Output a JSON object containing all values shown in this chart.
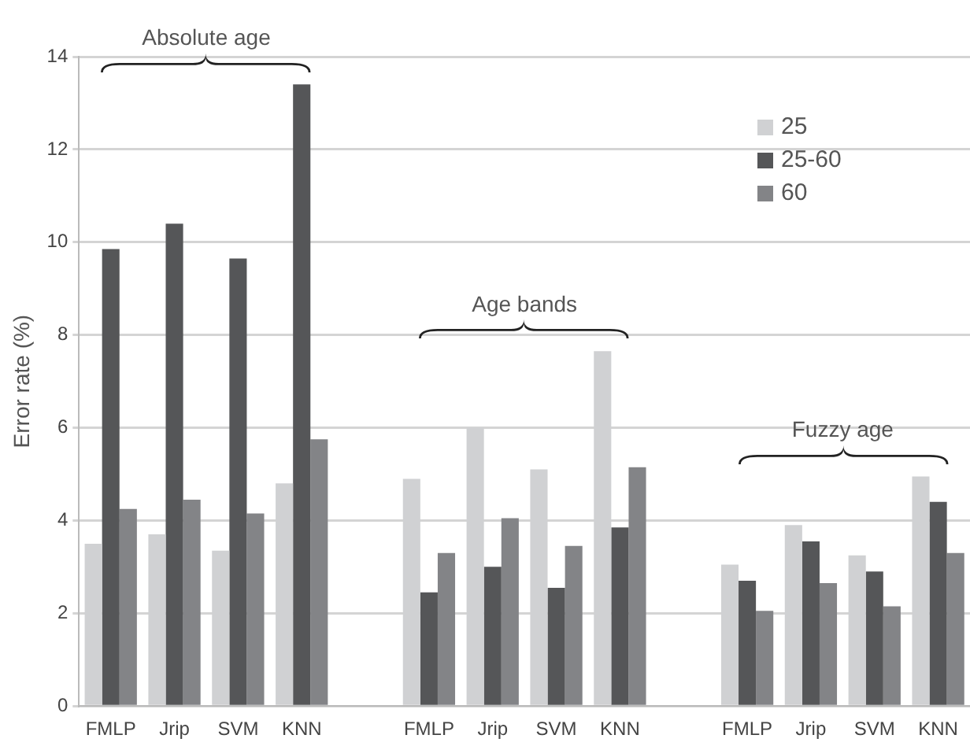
{
  "chart_data": {
    "type": "bar",
    "ylabel": "Error rate (%)",
    "categories": [
      "FMLP",
      "Jrip",
      "SVM",
      "KNN",
      null,
      "FMLP",
      "Jrip",
      "SVM",
      "KNN",
      null,
      "FMLP",
      "Jrip",
      "SVM",
      "KNN"
    ],
    "series": [
      {
        "name": "25",
        "color": "#d0d1d3",
        "values": [
          3.5,
          3.7,
          3.35,
          4.8,
          null,
          4.9,
          6.0,
          5.1,
          7.65,
          null,
          3.05,
          3.9,
          3.25,
          4.95
        ]
      },
      {
        "name": "25-60",
        "color": "#555658",
        "values": [
          9.85,
          10.4,
          9.65,
          13.4,
          null,
          2.45,
          3.0,
          2.55,
          3.85,
          null,
          2.7,
          3.55,
          2.9,
          4.4
        ]
      },
      {
        "name": "60",
        "color": "#838487",
        "values": [
          4.25,
          4.45,
          4.15,
          5.75,
          null,
          3.3,
          4.05,
          3.45,
          5.15,
          null,
          2.05,
          2.65,
          2.15,
          3.3
        ]
      }
    ],
    "annotations": [
      "Absolute age",
      "Age bands",
      "Fuzzy age"
    ],
    "ylim": [
      0,
      14
    ],
    "yticks": [
      0,
      2,
      4,
      6,
      8,
      10,
      12,
      14
    ],
    "grid": "y",
    "legend": "top right"
  }
}
